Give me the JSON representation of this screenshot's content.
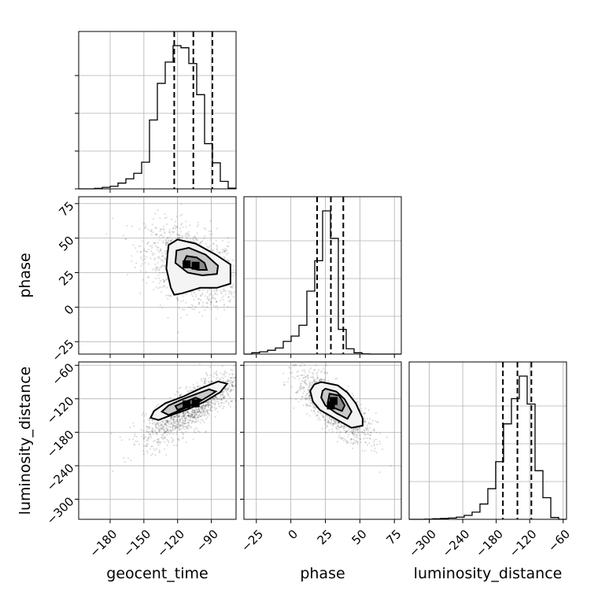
{
  "chart_data": {
    "type": "corner",
    "params": [
      "geocent_time",
      "phase",
      "luminosity_distance"
    ],
    "axes": {
      "geocent_time": {
        "range": [
          -208,
          -68
        ],
        "ticks": [
          -180,
          -150,
          -120,
          -90
        ]
      },
      "phase": {
        "range": [
          -34,
          80
        ],
        "ticks": [
          -25,
          0,
          25,
          50,
          75
        ]
      },
      "luminosity_distance": {
        "range": [
          -336,
          -54
        ],
        "ticks": [
          -300,
          -240,
          -180,
          -120,
          -60
        ]
      }
    },
    "histograms": {
      "geocent_time": {
        "bin_edges": [
          -208,
          -201,
          -194,
          -187,
          -180,
          -173,
          -166,
          -159,
          -152,
          -145,
          -138,
          -131,
          -124,
          -117,
          -110,
          -103,
          -96,
          -89,
          -82,
          -75,
          -68
        ],
        "counts": [
          0.0,
          0.0,
          0.2,
          0.7,
          1.2,
          2.7,
          4.7,
          7.3,
          12.5,
          32.3,
          49.5,
          59.5,
          67.2,
          66.2,
          58.8,
          44.2,
          21.2,
          12.2,
          3.5,
          0.3
        ],
        "quantiles": [
          -123,
          -106,
          -89
        ]
      },
      "phase": {
        "bin_edges": [
          -34,
          -28.3,
          -22.6,
          -16.9,
          -11.2,
          -5.5,
          0.2,
          5.9,
          11.6,
          17.3,
          23.0,
          28.7,
          34.4,
          40.1,
          45.8,
          51.5,
          57.2,
          62.9,
          68.6,
          74.3,
          80.0
        ],
        "counts": [
          0.0,
          0.7,
          1.2,
          2.0,
          3.2,
          6.7,
          9.5,
          15.2,
          33.2,
          49.2,
          75.5,
          61.0,
          13.0,
          2.8,
          0.7,
          0.1,
          0.0,
          0.0,
          0.0,
          0.0
        ],
        "quantiles": [
          19,
          29,
          38
        ]
      },
      "luminosity_distance": {
        "bin_edges": [
          -336,
          -321.9,
          -307.8,
          -293.7,
          -279.6,
          -265.5,
          -251.4,
          -237.3,
          -223.2,
          -209.1,
          -195.0,
          -180.9,
          -166.8,
          -152.7,
          -138.6,
          -124.5,
          -110.4,
          -96.3,
          -82.2,
          -68.1,
          -54.0
        ],
        "counts": [
          0.0,
          0.0,
          0.1,
          0.3,
          0.5,
          0.7,
          1.2,
          2.2,
          4.0,
          8.5,
          17.0,
          32.0,
          53.0,
          67.0,
          79.5,
          64.0,
          27.0,
          12.0,
          1.0,
          0.0
        ],
        "quantiles": [
          -168,
          -142,
          -117
        ]
      }
    },
    "pairs": [
      {
        "x": "geocent_time",
        "y": "phase",
        "center": [
          -108,
          30
        ],
        "sd": [
          20,
          14
        ],
        "rho": -0.4,
        "contours": [
          [
            [
              -130,
              28
            ],
            [
              -129,
              38
            ],
            [
              -128,
              45
            ],
            [
              -120,
              49
            ],
            [
              -104,
              46
            ],
            [
              -86,
              38
            ],
            [
              -73,
              31
            ],
            [
              -73,
              17
            ],
            [
              -85,
              14
            ],
            [
              -100,
              14
            ],
            [
              -116,
              10
            ],
            [
              -123,
              9
            ],
            [
              -126,
              14
            ],
            [
              -128,
              21
            ]
          ],
          [
            [
              -122,
              32
            ],
            [
              -121,
              41
            ],
            [
              -110,
              43
            ],
            [
              -95,
              38
            ],
            [
              -84,
              30
            ],
            [
              -85,
              24
            ],
            [
              -98,
              23
            ],
            [
              -111,
              25
            ]
          ],
          [
            [
              -115,
              32
            ],
            [
              -112,
              37
            ],
            [
              -103,
              36
            ],
            [
              -96,
              32
            ],
            [
              -94,
              27
            ],
            [
              -102,
              27
            ],
            [
              -110,
              29
            ]
          ]
        ],
        "hot_cells": [
          [
            -104,
            30
          ],
          [
            -112,
            31
          ]
        ]
      },
      {
        "x": "geocent_time",
        "y": "luminosity_distance",
        "center": [
          -108,
          -136
        ],
        "sd": [
          21,
          32
        ],
        "rho": 0.8,
        "contours": [
          [
            [
              -137,
              -158
            ],
            [
              -124,
              -148
            ],
            [
              -110,
              -138
            ],
            [
              -96,
              -125
            ],
            [
              -82,
              -108
            ],
            [
              -76,
              -93
            ],
            [
              -84,
              -89
            ],
            [
              -99,
              -101
            ],
            [
              -115,
              -116
            ],
            [
              -131,
              -128
            ],
            [
              -141,
              -142
            ],
            [
              -144,
              -154
            ]
          ],
          [
            [
              -128,
              -149
            ],
            [
              -116,
              -139
            ],
            [
              -104,
              -129
            ],
            [
              -93,
              -116
            ],
            [
              -86,
              -107
            ],
            [
              -92,
              -103
            ],
            [
              -104,
              -112
            ],
            [
              -117,
              -122
            ],
            [
              -128,
              -132
            ],
            [
              -134,
              -143
            ]
          ],
          [
            [
              -120,
              -140
            ],
            [
              -108,
              -131
            ],
            [
              -100,
              -121
            ],
            [
              -104,
              -118
            ],
            [
              -114,
              -126
            ],
            [
              -122,
              -133
            ]
          ]
        ],
        "hot_cells": [
          [
            -112,
            -130
          ],
          [
            -104,
            -128
          ]
        ]
      },
      {
        "x": "phase",
        "y": "luminosity_distance",
        "center": [
          31,
          -134
        ],
        "sd": [
          13,
          30
        ],
        "rho": -0.75,
        "contours": [
          [
            [
              22,
              -90
            ],
            [
              34,
              -96
            ],
            [
              41,
              -109
            ],
            [
              47,
              -128
            ],
            [
              52,
              -155
            ],
            [
              52,
              -168
            ],
            [
              44,
              -172
            ],
            [
              33,
              -157
            ],
            [
              21,
              -140
            ],
            [
              16,
              -125
            ],
            [
              14,
              -106
            ],
            [
              17,
              -94
            ]
          ],
          [
            [
              25,
              -102
            ],
            [
              33,
              -107
            ],
            [
              39,
              -121
            ],
            [
              44,
              -143
            ],
            [
              41,
              -156
            ],
            [
              33,
              -146
            ],
            [
              25,
              -132
            ],
            [
              22,
              -118
            ],
            [
              23,
              -106
            ]
          ],
          [
            [
              28,
              -111
            ],
            [
              35,
              -114
            ],
            [
              39,
              -132
            ],
            [
              37,
              -142
            ],
            [
              31,
              -136
            ],
            [
              27,
              -124
            ]
          ]
        ],
        "hot_cells": [
          [
            31,
            -124
          ],
          [
            29,
            -132
          ]
        ]
      }
    ]
  }
}
